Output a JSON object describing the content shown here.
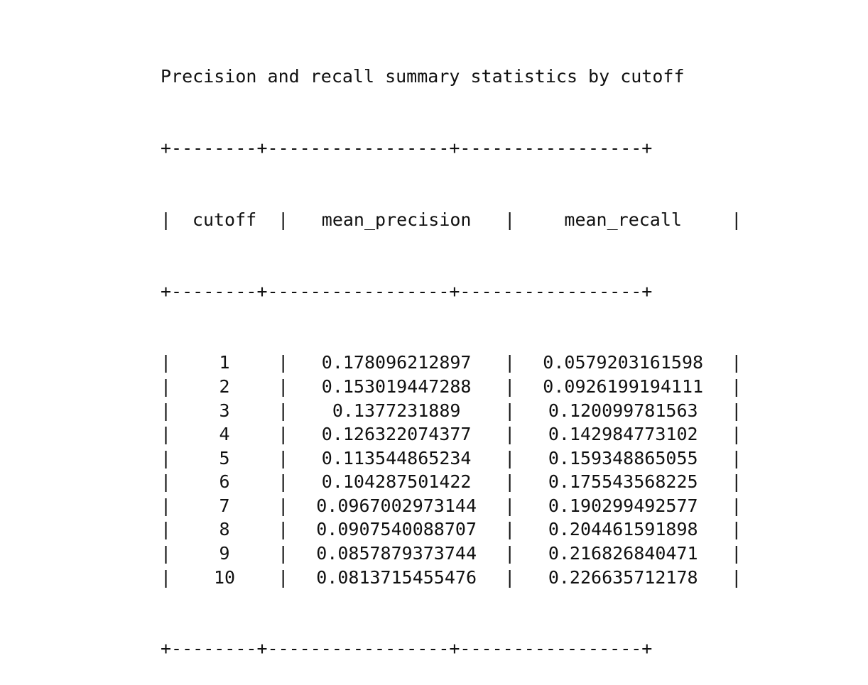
{
  "title": "Precision and recall summary statistics by cutoff",
  "border": "+--------+-----------------+-----------------+",
  "headers": [
    "cutoff",
    "mean_precision",
    "mean_recall"
  ],
  "rows": [
    [
      "1",
      "0.178096212897",
      "0.0579203161598"
    ],
    [
      "2",
      "0.153019447288",
      "0.0926199194111"
    ],
    [
      "3",
      "0.1377231889",
      "0.120099781563"
    ],
    [
      "4",
      "0.126322074377",
      "0.142984773102"
    ],
    [
      "5",
      "0.113544865234",
      "0.159348865055"
    ],
    [
      "6",
      "0.104287501422",
      "0.175543568225"
    ],
    [
      "7",
      "0.0967002973144",
      "0.190299492577"
    ],
    [
      "8",
      "0.0907540088707",
      "0.204461591898"
    ],
    [
      "9",
      "0.0857879373744",
      "0.216826840471"
    ],
    [
      "10",
      "0.0813715455476",
      "0.226635712178"
    ]
  ]
}
